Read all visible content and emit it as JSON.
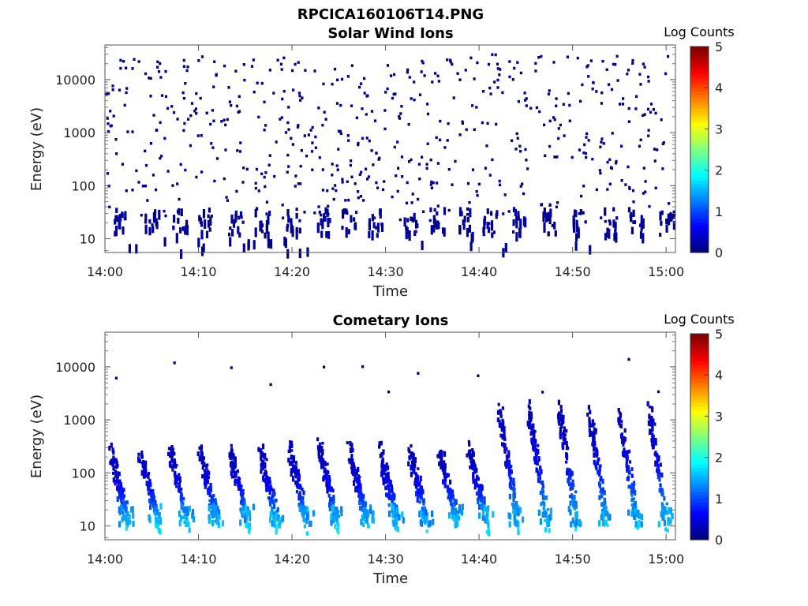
{
  "figure_title": "RPCICA160106T14.PNG",
  "chart_data": [
    {
      "type": "heatmap",
      "title": "Solar Wind Ions",
      "xlabel": "Time",
      "ylabel": "Energy (eV)",
      "x_ticks": [
        "14:00",
        "14:10",
        "14:20",
        "14:30",
        "14:40",
        "14:50",
        "15:00"
      ],
      "y_ticks": [
        "10",
        "100",
        "1000",
        "10000"
      ],
      "y_scale": "log",
      "ylim": [
        5.5,
        45000
      ],
      "xlim_minutes": [
        0,
        61
      ],
      "colorbar": {
        "label": "Log Counts",
        "ticks": [
          "0",
          "1",
          "2",
          "3",
          "4",
          "5"
        ],
        "range": [
          0,
          5
        ],
        "colormap": "jet"
      },
      "pattern": "sparse scattered counts at all energies, denser band at ~10-40 eV",
      "level": "mostly log counts ~0-0.3 (dark blue)"
    },
    {
      "type": "heatmap",
      "title": "Cometary Ions",
      "xlabel": "Time",
      "ylabel": "Energy (eV)",
      "x_ticks": [
        "14:00",
        "14:10",
        "14:20",
        "14:30",
        "14:40",
        "14:50",
        "15:00"
      ],
      "y_ticks": [
        "10",
        "100",
        "1000",
        "10000"
      ],
      "y_scale": "log",
      "ylim": [
        5.5,
        45000
      ],
      "xlim_minutes": [
        0,
        61
      ],
      "colorbar": {
        "label": "Log Counts",
        "ticks": [
          "0",
          "1",
          "2",
          "3",
          "4",
          "5"
        ],
        "range": [
          0,
          5
        ],
        "colormap": "jet"
      },
      "pattern": "periodic sweeps every ~3.2 min descending from ~300 eV to ~12 eV; after 14:42 sweeps extend to ~3000 eV",
      "burst_start_minutes": [
        0.4,
        3.6,
        6.8,
        10.0,
        13.2,
        16.4,
        19.6,
        22.8,
        26.0,
        29.2,
        32.4,
        35.6,
        38.8,
        42.0,
        45.2,
        48.4,
        51.6,
        54.8,
        58.0
      ],
      "level": "up to ~1.5 log counts (cyan) at the lowest energies"
    }
  ]
}
